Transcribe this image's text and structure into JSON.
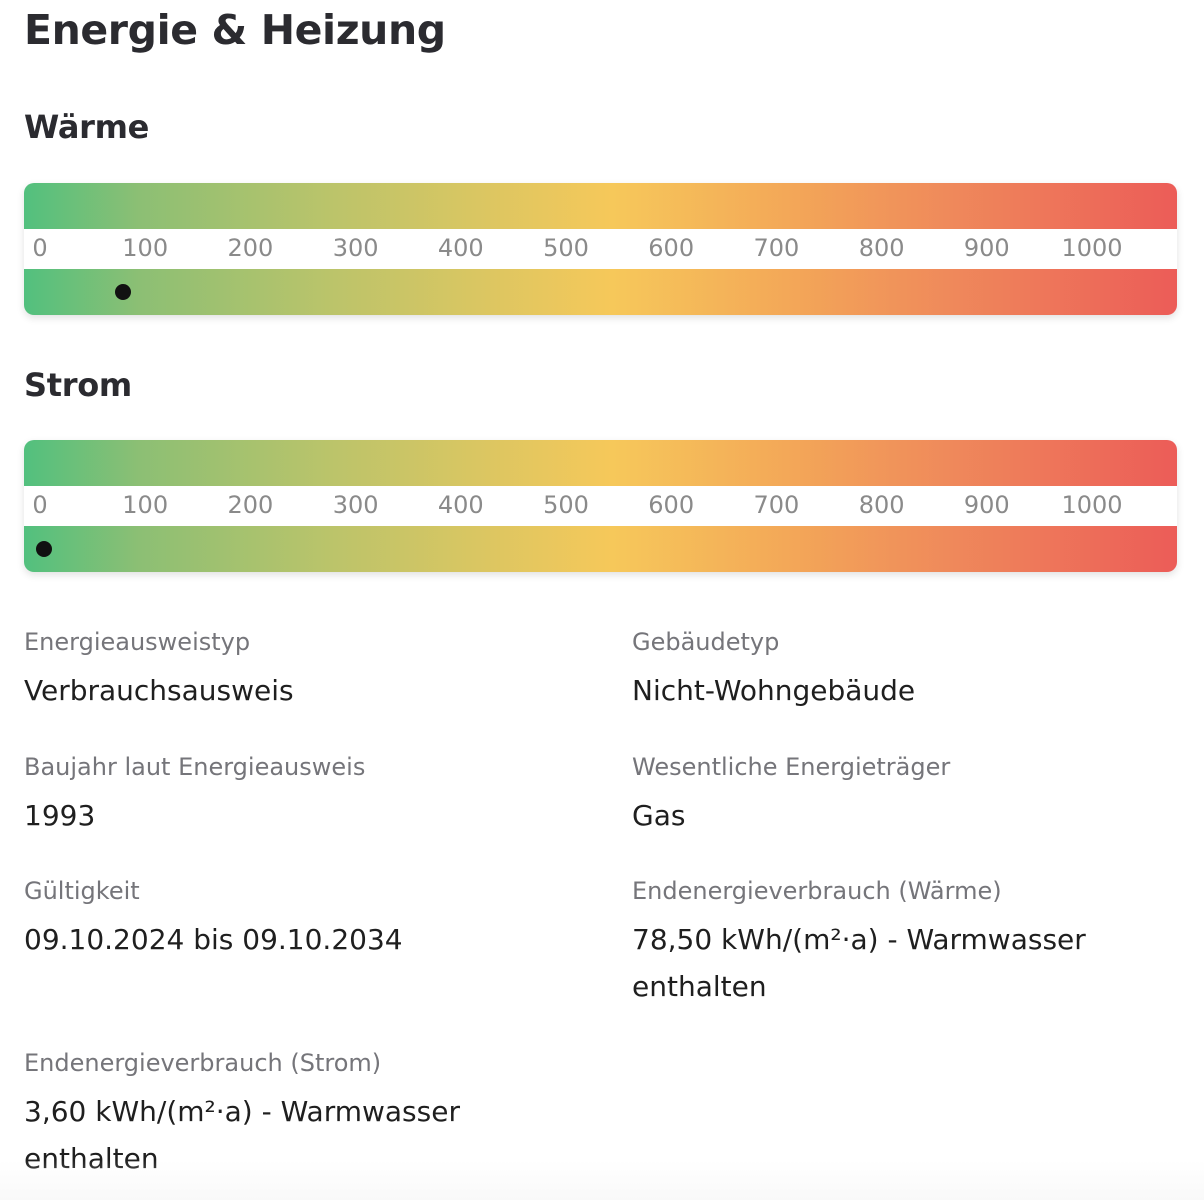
{
  "header": {
    "title": "Energie & Heizung"
  },
  "scale_ticks": [
    "0",
    "100",
    "200",
    "300",
    "400",
    "500",
    "600",
    "700",
    "800",
    "900",
    "1000",
    "+"
  ],
  "colors": {
    "scale_start": "#52c07e",
    "scale_middle": "#f6c85a",
    "scale_end": "#ec5c58",
    "marker": "#111111"
  },
  "waerme": {
    "title": "Wärme",
    "value": 78.5
  },
  "strom": {
    "title": "Strom",
    "value": 3.6
  },
  "details": {
    "ausweistyp": {
      "label": "Energieausweistyp",
      "value": "Verbrauchsausweis"
    },
    "gebaeudetyp": {
      "label": "Gebäudetyp",
      "value": "Nicht-Wohngebäude"
    },
    "baujahr": {
      "label": "Baujahr laut Energieausweis",
      "value": "1993"
    },
    "energietraeger": {
      "label": "Wesentliche Energieträger",
      "value": "Gas"
    },
    "gueltigkeit": {
      "label": "Gültigkeit",
      "value": "09.10.2024 bis 09.10.2034"
    },
    "verbrauch_waerme": {
      "label": "Endenergieverbrauch (Wärme)",
      "value": "78,50 kWh/(m²·a) - Warmwasser enthalten"
    },
    "verbrauch_strom": {
      "label": "Endenergieverbrauch (Strom)",
      "value": "3,60 kWh/(m²·a) - Warmwasser enthalten"
    }
  }
}
